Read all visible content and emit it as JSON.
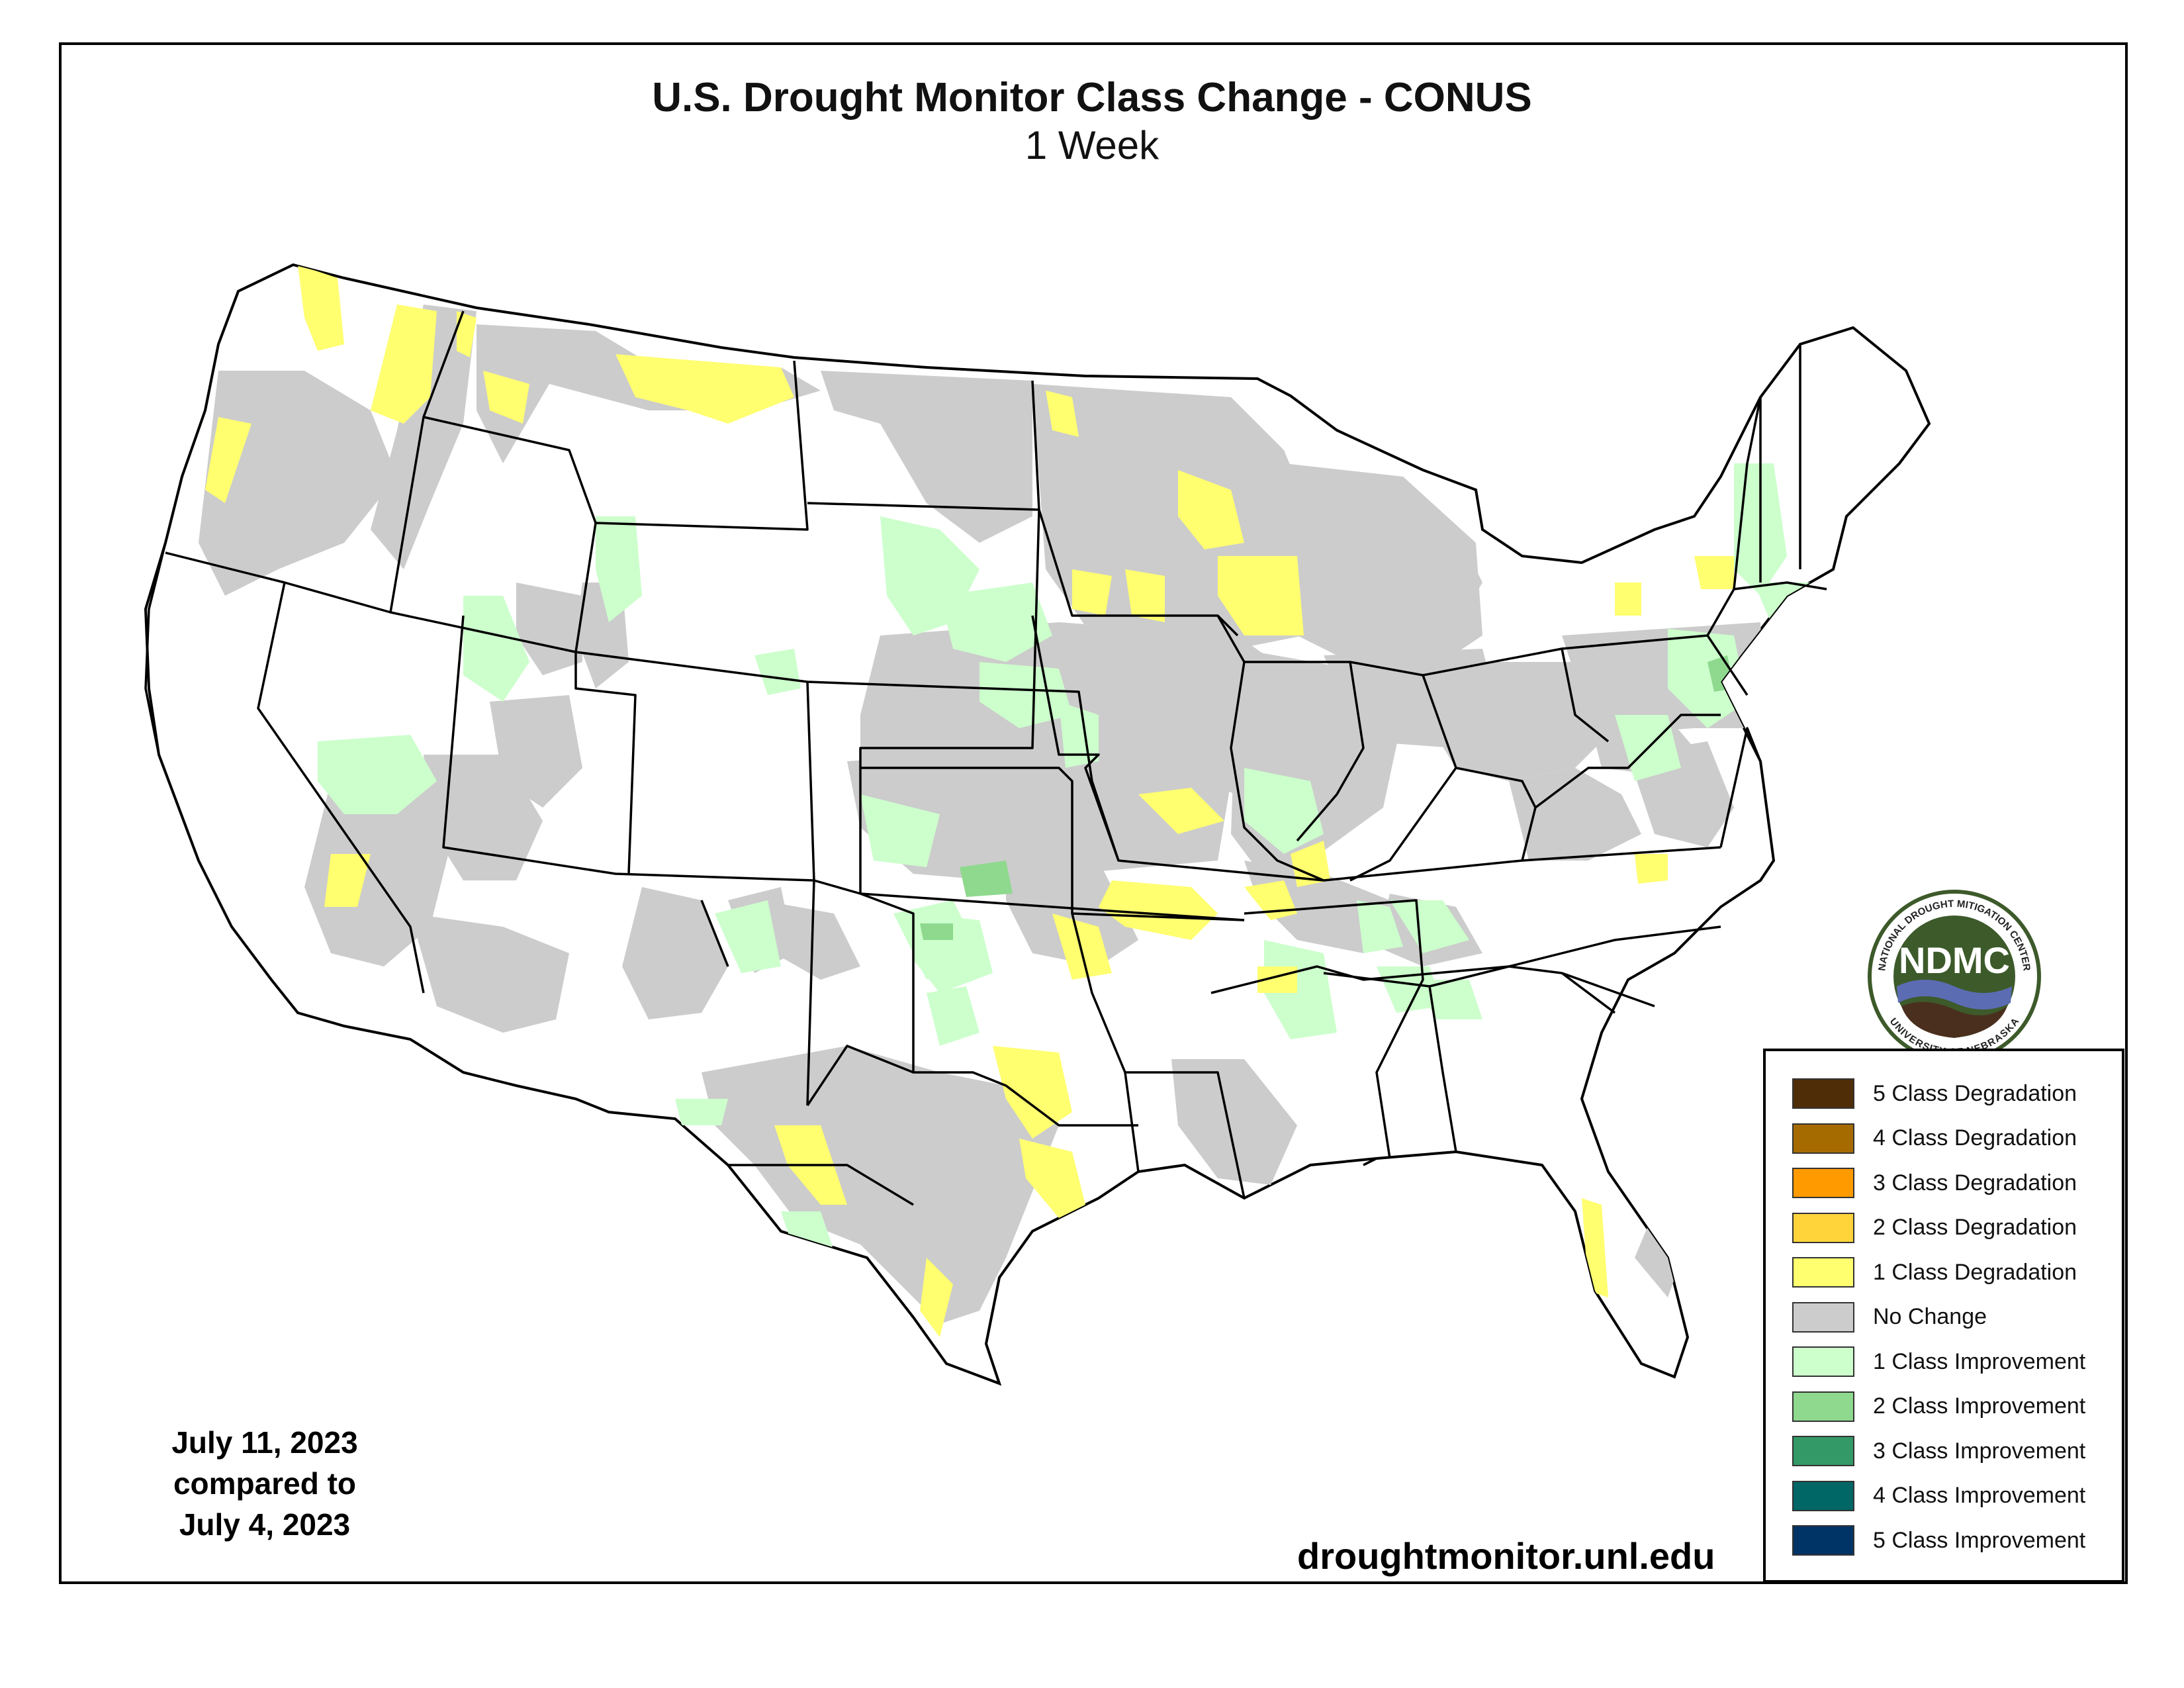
{
  "title": "U.S. Drought Monitor Class Change - CONUS",
  "subtitle": "1 Week",
  "date_block": {
    "line1": "July 11, 2023",
    "line2": "compared to",
    "line3": "July 4, 2023"
  },
  "source": "droughtmonitor.unl.edu",
  "logo": {
    "acronym": "NDMC",
    "top_text": "NATIONAL DROUGHT MITIGATION CENTER",
    "bottom_text": "UNIVERSITY OF NEBRASKA",
    "colors": {
      "ring": "#ffffff",
      "inner": "#3d5a2a",
      "water": "#5b6cb3",
      "land": "#4a2f1e"
    }
  },
  "legend": {
    "items": [
      {
        "label": "5 Class Degradation",
        "color": "#4f2d06"
      },
      {
        "label": "4 Class Degradation",
        "color": "#a66b00"
      },
      {
        "label": "3 Class Degradation",
        "color": "#ff9a00"
      },
      {
        "label": "2 Class Degradation",
        "color": "#ffd43b"
      },
      {
        "label": "1 Class Degradation",
        "color": "#ffff70"
      },
      {
        "label": "No Change",
        "color": "#cccccc"
      },
      {
        "label": "1 Class Improvement",
        "color": "#ccffcc"
      },
      {
        "label": "2 Class Improvement",
        "color": "#8ed98e"
      },
      {
        "label": "3 Class Improvement",
        "color": "#339966"
      },
      {
        "label": "4 Class Improvement",
        "color": "#006666"
      },
      {
        "label": "5 Class Improvement",
        "color": "#003366"
      }
    ]
  },
  "map_colors": {
    "no_change": "#cccccc",
    "degradation_1": "#ffff70",
    "improvement_1": "#ccffcc",
    "improvement_2": "#8ed98e",
    "state_outline": "#000000"
  }
}
